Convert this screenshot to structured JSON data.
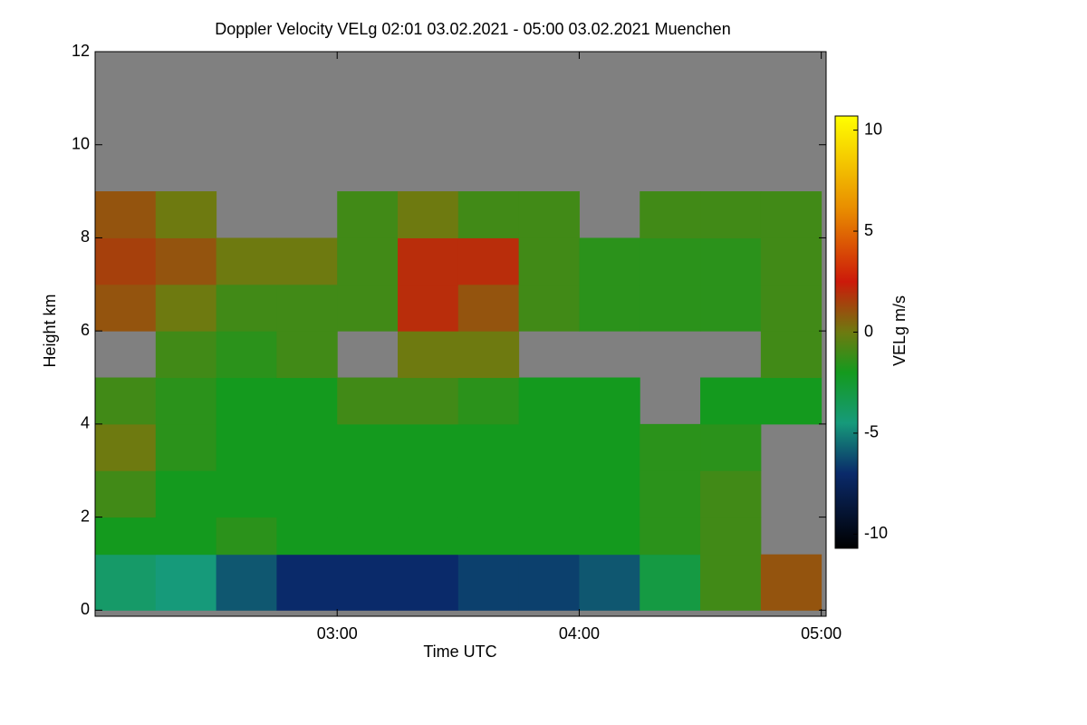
{
  "chart_data": {
    "type": "heatmap",
    "title": "Doppler Velocity VELg   02:01 03.02.2021 - 05:00 03.02.2021 Muenchen",
    "xlabel": "Time UTC",
    "ylabel": "Height km",
    "colorbar_label": "VELg m/s",
    "xlim": [
      2.0,
      5.02
    ],
    "ylim": [
      -0.13,
      12
    ],
    "xticks": [
      {
        "value": 3,
        "label": "03:00"
      },
      {
        "value": 4,
        "label": "04:00"
      },
      {
        "value": 5,
        "label": "05:00"
      }
    ],
    "yticks": [
      0,
      2,
      4,
      6,
      8,
      10,
      12
    ],
    "clim": [
      -10.7,
      10.7
    ],
    "cticks": [
      10,
      5,
      0,
      -5,
      -10
    ],
    "colormap": [
      [
        -10.7,
        "#000000"
      ],
      [
        -7,
        "#0a2a6a"
      ],
      [
        -4.5,
        "#169a7a"
      ],
      [
        -2,
        "#149a1e"
      ],
      [
        0,
        "#6e7a10"
      ],
      [
        2.5,
        "#cc1a0a"
      ],
      [
        6,
        "#e88a00"
      ],
      [
        10.7,
        "#ffff00"
      ]
    ],
    "nodata_color": "#808080",
    "x_edges": [
      2.0,
      2.25,
      2.5,
      2.75,
      3.0,
      3.25,
      3.5,
      3.75,
      4.0,
      4.25,
      4.5,
      4.75,
      5.0
    ],
    "y_edges": [
      0,
      1.2,
      2,
      3,
      4,
      5,
      6,
      7,
      8,
      9,
      12
    ],
    "values": [
      [
        -4,
        -4.5,
        -6,
        -7,
        -7,
        -7,
        -6.5,
        -6.5,
        -6,
        -3,
        -1,
        1
      ],
      [
        -2,
        -2,
        -1.5,
        -2,
        -2,
        -2,
        -2,
        -2,
        -2,
        -1.5,
        -1,
        null
      ],
      [
        -1,
        -2,
        -2,
        -2,
        -2,
        -2,
        -2,
        -2,
        -2,
        -1.5,
        -1,
        null
      ],
      [
        0,
        -1.5,
        -2,
        -2,
        -2,
        -2,
        -2,
        -2,
        -2,
        -1.5,
        -1.5,
        null
      ],
      [
        -1,
        -1.5,
        -2,
        -2,
        -1,
        -1,
        -1.5,
        -2,
        -2,
        null,
        -2,
        -2
      ],
      [
        null,
        -1,
        -1.5,
        -1,
        null,
        0,
        0,
        null,
        null,
        null,
        null,
        -1
      ],
      [
        1,
        0,
        -1,
        -1,
        -1,
        2,
        1,
        -1,
        -1.5,
        -1.5,
        -1.5,
        -1
      ],
      [
        1.5,
        1,
        0,
        0,
        -1,
        2,
        2,
        -1,
        -1.5,
        -1.5,
        -1.5,
        -1
      ],
      [
        1,
        0,
        null,
        null,
        -1,
        0,
        -1,
        -1,
        null,
        -1,
        -1,
        -1
      ],
      [
        null,
        null,
        null,
        null,
        null,
        null,
        null,
        null,
        null,
        null,
        null,
        null
      ]
    ]
  }
}
